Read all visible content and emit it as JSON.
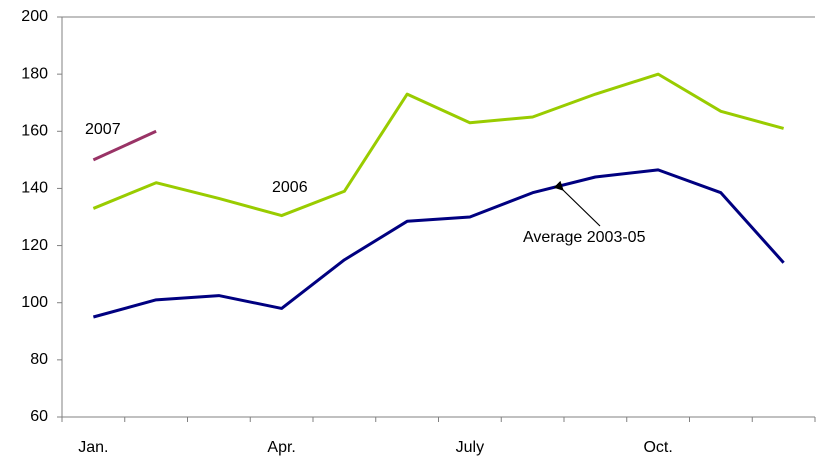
{
  "chart_data": {
    "type": "line",
    "categories": [
      "Jan.",
      null,
      null,
      "Apr.",
      null,
      null,
      "July",
      null,
      null,
      "Oct.",
      null,
      null
    ],
    "series": [
      {
        "name": "2007",
        "color": "#993366",
        "values": [
          150,
          160,
          null,
          null,
          null,
          null,
          null,
          null,
          null,
          null,
          null,
          null
        ]
      },
      {
        "name": "2006",
        "color": "#99cc00",
        "values": [
          133,
          142,
          136.5,
          130.5,
          139,
          173,
          163,
          165,
          173,
          180,
          167,
          161
        ]
      },
      {
        "name": "Average 2003-05",
        "color": "#000080",
        "values": [
          95,
          101,
          102.5,
          98,
          115,
          128.5,
          130,
          138.5,
          144,
          146.5,
          138.5,
          114
        ]
      }
    ],
    "ylim": [
      60,
      200
    ],
    "yticks": [
      60,
      80,
      100,
      120,
      140,
      160,
      180,
      200
    ]
  }
}
